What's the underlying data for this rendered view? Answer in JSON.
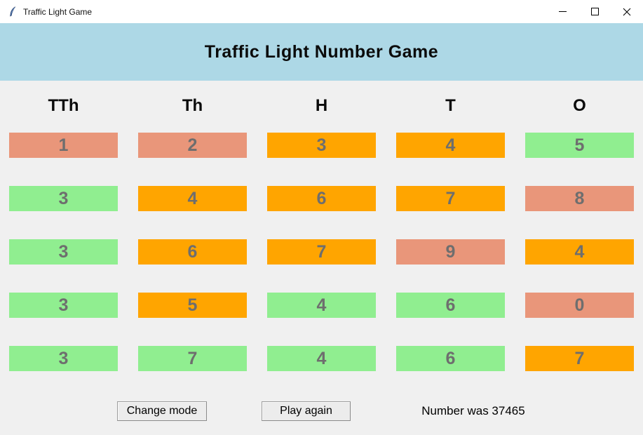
{
  "window": {
    "title": "Traffic Light Game"
  },
  "header": {
    "title": "Traffic Light Number Game"
  },
  "columns": [
    "TTh",
    "Th",
    "H",
    "T",
    "O"
  ],
  "grid": {
    "rows": [
      [
        {
          "digit": "1",
          "state": "red"
        },
        {
          "digit": "2",
          "state": "red"
        },
        {
          "digit": "3",
          "state": "amber"
        },
        {
          "digit": "4",
          "state": "amber"
        },
        {
          "digit": "5",
          "state": "green"
        }
      ],
      [
        {
          "digit": "3",
          "state": "green"
        },
        {
          "digit": "4",
          "state": "amber"
        },
        {
          "digit": "6",
          "state": "amber"
        },
        {
          "digit": "7",
          "state": "amber"
        },
        {
          "digit": "8",
          "state": "red"
        }
      ],
      [
        {
          "digit": "3",
          "state": "green"
        },
        {
          "digit": "6",
          "state": "amber"
        },
        {
          "digit": "7",
          "state": "amber"
        },
        {
          "digit": "9",
          "state": "red"
        },
        {
          "digit": "4",
          "state": "amber"
        }
      ],
      [
        {
          "digit": "3",
          "state": "green"
        },
        {
          "digit": "5",
          "state": "amber"
        },
        {
          "digit": "4",
          "state": "green"
        },
        {
          "digit": "6",
          "state": "green"
        },
        {
          "digit": "0",
          "state": "red"
        }
      ],
      [
        {
          "digit": "3",
          "state": "green"
        },
        {
          "digit": "7",
          "state": "green"
        },
        {
          "digit": "4",
          "state": "green"
        },
        {
          "digit": "6",
          "state": "green"
        },
        {
          "digit": "7",
          "state": "amber"
        }
      ]
    ]
  },
  "colors": {
    "red": "#E9967A",
    "amber": "#FFA500",
    "green": "#90EE90",
    "header_bg": "#ADD8E6",
    "digit": "#6E6E6E",
    "window_bg": "#F0F0F0"
  },
  "footer": {
    "change_mode_label": "Change mode",
    "play_again_label": "Play again",
    "status_text": "Number was 37465"
  }
}
